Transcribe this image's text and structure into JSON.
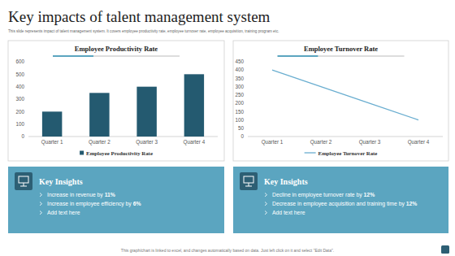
{
  "header": {
    "title": "Key impacts of talent management system",
    "subtitle": "This slide represents impact of talent management system. It covers employee productivity rate, employee turnover rate, employee acquisition, training program etc."
  },
  "chart_data": [
    {
      "type": "bar",
      "title": "Employee Productivity Rate",
      "categories": [
        "Quarter 1",
        "Quarter 2",
        "Quarter 3",
        "Quarter 4"
      ],
      "series": [
        {
          "name": "Employee Productivity Rate",
          "color": "#245a70",
          "values": [
            200,
            350,
            400,
            500
          ]
        }
      ],
      "ylim": [
        0,
        600
      ],
      "yticks": [
        0,
        100,
        200,
        300,
        400,
        500,
        600
      ],
      "grid": false,
      "legend": "bottom"
    },
    {
      "type": "line",
      "title": "Employee Turnover Rate",
      "categories": [
        "Quarter 1",
        "Quarter 2",
        "Quarter 3",
        "Quarter 4"
      ],
      "series": [
        {
          "name": "Employee Turnover Rate",
          "color": "#6aaed0",
          "values": [
            400,
            300,
            200,
            100
          ]
        }
      ],
      "ylim": [
        0,
        450
      ],
      "yticks": [
        0,
        50,
        100,
        150,
        200,
        250,
        300,
        350,
        400,
        450
      ],
      "grid": false,
      "legend": "bottom"
    }
  ],
  "insights": [
    {
      "title": "Key Insights",
      "items": [
        [
          "Increase in revenue by ",
          "11%"
        ],
        [
          "Increase in employee efficiency by ",
          "6%"
        ],
        [
          "Add text here"
        ]
      ]
    },
    {
      "title": "Key Insights",
      "items": [
        [
          "Decline in employee turnover rate by ",
          "12%"
        ],
        [
          "Decrease in employee acquisition and training time by ",
          "12%"
        ],
        [
          "Add text here"
        ]
      ]
    }
  ],
  "footer": "This graph/chart is linked to excel, and changes automatically based on data. Just left click on it and select \"Edit Data\"."
}
